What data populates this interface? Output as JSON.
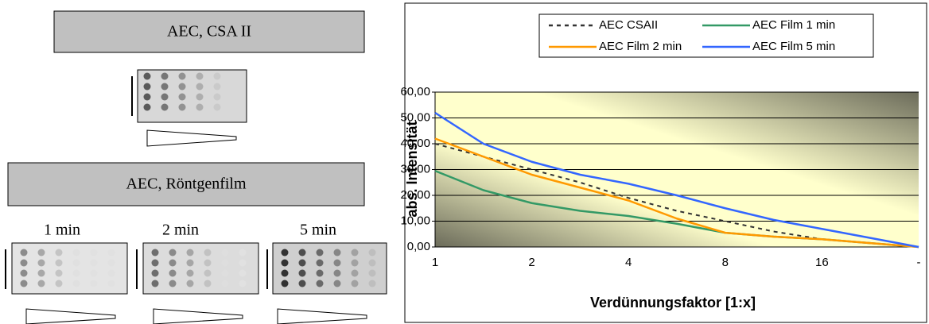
{
  "panels": {
    "csa_title": "AEC, CSA II",
    "film_title": "AEC, Röntgenfilm",
    "times": [
      "1 min",
      "2 min",
      "5 min"
    ]
  },
  "chart_data": {
    "type": "line",
    "x_label": "Verdünnungsfaktor [1:x]",
    "y_label": "abs. Intensität",
    "categories": [
      "1",
      null,
      "2",
      null,
      "4",
      null,
      "8",
      null,
      "16",
      null,
      "-"
    ],
    "ylim": [
      0,
      60
    ],
    "yticks": [
      {
        "value": 0,
        "label": "0,00"
      },
      {
        "value": 10,
        "label": "10,00"
      },
      {
        "value": 20,
        "label": "20,00"
      },
      {
        "value": 30,
        "label": "30,00"
      },
      {
        "value": 40,
        "label": "40,00"
      },
      {
        "value": 50,
        "label": "50,00"
      },
      {
        "value": 60,
        "label": "60,00"
      }
    ],
    "grid": true,
    "legend": "top",
    "series": [
      {
        "name": "AEC CSAII",
        "color": "#333333",
        "dash": true,
        "values": [
          40,
          35,
          30,
          25,
          19,
          14,
          10,
          6,
          3,
          1.5,
          0
        ]
      },
      {
        "name": "AEC Film 1 min",
        "color": "#339966",
        "values": [
          29.5,
          22,
          17,
          14,
          12,
          9,
          5.5,
          4,
          3,
          1.5,
          0
        ]
      },
      {
        "name": "AEC Film 2 min",
        "color": "#ff9900",
        "values": [
          42,
          35,
          28,
          23,
          18,
          11,
          5.5,
          4,
          3,
          1.5,
          0
        ]
      },
      {
        "name": "AEC Film 5 min",
        "color": "#3366ff",
        "values": [
          52,
          40,
          33,
          28,
          24.5,
          20,
          15,
          10.5,
          7,
          3.5,
          0
        ]
      }
    ]
  }
}
